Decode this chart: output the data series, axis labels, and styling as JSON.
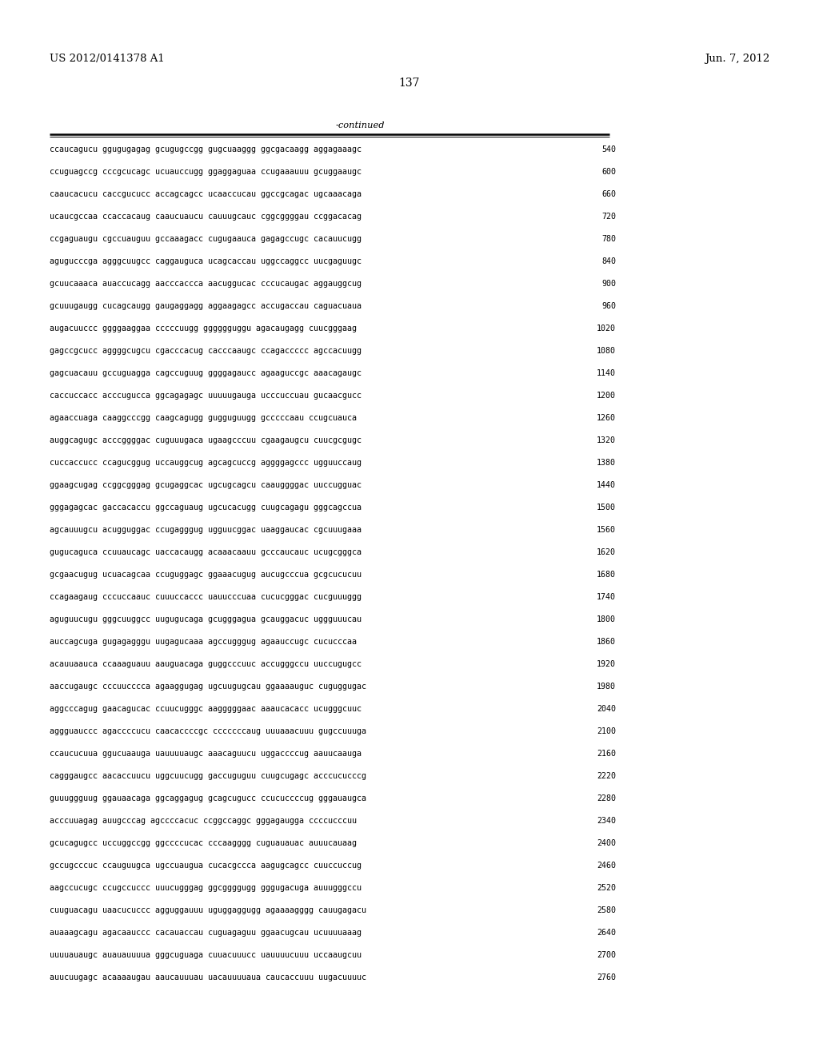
{
  "header_left": "US 2012/0141378 A1",
  "header_right": "Jun. 7, 2012",
  "page_number": "137",
  "continued_label": "-continued",
  "background_color": "#ffffff",
  "text_color": "#000000",
  "font_size": 7.2,
  "header_font_size": 9.5,
  "page_num_font_size": 10,
  "lines": [
    [
      "ccaucagucu ggugugagag gcugugccgg gugcuaaggg ggcgacaagg aggagaaagc",
      "540"
    ],
    [
      "ccuguagccg cccgcucagc ucuauccugg ggaggaguaa ccugaaauuu gcuggaaugc",
      "600"
    ],
    [
      "caaucacucu caccgucucc accagcagcc ucaaccucau ggccgcagac ugcaaacaga",
      "660"
    ],
    [
      "ucaucgccaa ccaccacaug caaucuaucu cauuugcauc cggcggggau ccggacacag",
      "720"
    ],
    [
      "ccgaguaugu cgccuauguu gccaaagacc cugugaauca gagagccugc cacauucugg",
      "780"
    ],
    [
      "agugucccga agggcuugcc caggauguca ucagcaccau uggccaggcc uucgaguugc",
      "840"
    ],
    [
      "gcuucaaaca auaccucagg aacccaccca aacuggucac cccucaugac aggauggcug",
      "900"
    ],
    [
      "gcuuugaugg cucagcaugg gaugaggagg aggaagagcc accugaccau caguacuaua",
      "960"
    ],
    [
      "augacuuccc ggggaaggaa cccccuugg gggggguggu agacaugagg cuucgggaag",
      "1020"
    ],
    [
      "gagccgcucc aggggcugcu cgacccacug cacccaaugc ccagaccccc agccacuugg",
      "1080"
    ],
    [
      "gagcuacauu gccuguagga cagccuguug ggggagaucc agaaguccgc aaacagaugc",
      "1140"
    ],
    [
      "caccuccacc acccugucca ggcagagagc uuuuugauga ucccuccuau gucaacgucc",
      "1200"
    ],
    [
      "agaaccuaga caaggcccgg caagcagugg gugguguugg gcccccaau ccugcuauca",
      "1260"
    ],
    [
      "auggcagugc acccggggac cuguuugaca ugaagcccuu cgaagaugcu cuucgcgugc",
      "1320"
    ],
    [
      "cuccaccucc ccagucggug uccauggcug agcagcuccg aggggagccc ugguuccaug",
      "1380"
    ],
    [
      "ggaagcugag ccggcgggag gcugaggcac ugcugcagcu caauggggac uuccugguac",
      "1440"
    ],
    [
      "gggagagcac gaccacaccu ggccaguaug ugcucacugg cuugcagagu gggcagccua",
      "1500"
    ],
    [
      "agcauuugcu acugguggac ccugagggug ugguucggac uaaggaucac cgcuuugaaa",
      "1560"
    ],
    [
      "gugucaguca ccuuaucagc uaccacaugg acaaacaauu gcccaucauc ucugcgggca",
      "1620"
    ],
    [
      "gcgaacugug ucuacagcaa ccuguggagc ggaaacugug aucugcccua gcgcucucuu",
      "1680"
    ],
    [
      "ccagaagaug cccuccaauc cuuuccaccc uauucccuaa cucucgggac cucguuuggg",
      "1740"
    ],
    [
      "aguguucugu gggcuuggcc uugugucaga gcugggagua gcauggacuc uggguuucau",
      "1800"
    ],
    [
      "auccagcuga gugagagggu uugagucaaa agccugggug agaauccugc cucucccaa",
      "1860"
    ],
    [
      "acauuaauca ccaaaguauu aauguacaga guggcccuuc accugggccu uuccugugcc",
      "1920"
    ],
    [
      "aaccugaugc cccuucccca agaaggugag ugcuugugcau ggaaaauguc cuguggugac",
      "1980"
    ],
    [
      "aggcccagug gaacagucac ccuucugggc aagggggaac aaaucacacc ucugggcuuc",
      "2040"
    ],
    [
      "aggguauccc agaccccucu caacaccccgc cccccccaug uuuaaacuuu gugccuuuga",
      "2100"
    ],
    [
      "ccaucucuua ggucuaauga uauuuuaugc aaacaguucu uggaccccug aauucaauga",
      "2160"
    ],
    [
      "cagggaugcc aacaccuucu uggcuucugg gaccuguguu cuugcugagc acccucucccg",
      "2220"
    ],
    [
      "guuuggguug ggauaacaga ggcaggagug gcagcugucc ccucuccccug gggauaugca",
      "2280"
    ],
    [
      "acccuuagag auugcccag agccccacuc ccggccaggc gggagaugga ccccucccuu",
      "2340"
    ],
    [
      "gcucagugcc uccuggccgg ggccccucac cccaagggg cuguauauac auuucauaag",
      "2400"
    ],
    [
      "gccugcccuc ccauguugca ugccuaugua cucacgccca aagugcagcc cuuccuccug",
      "2460"
    ],
    [
      "aagccucugc ccugccuccc uuucugggag ggcggggugg gggugacuga auuugggccu",
      "2520"
    ],
    [
      "cuuguacagu uaacucuccc agguggauuu uguggaggugg agaaaagggg cauugagacu",
      "2580"
    ],
    [
      "auaaagcagu agacaauccc cacauaccau cuguagaguu ggaacugcau ucuuuuaaag",
      "2640"
    ],
    [
      "uuuuauaugc auauauuuua gggcuguaga cuuacuuucc uauuuucuuu uccaaugcuu",
      "2700"
    ],
    [
      "auucuugagc acaaaaugau aaucauuuau uacauuuuaua caucaccuuu uugacuuuuc",
      "2760"
    ]
  ]
}
